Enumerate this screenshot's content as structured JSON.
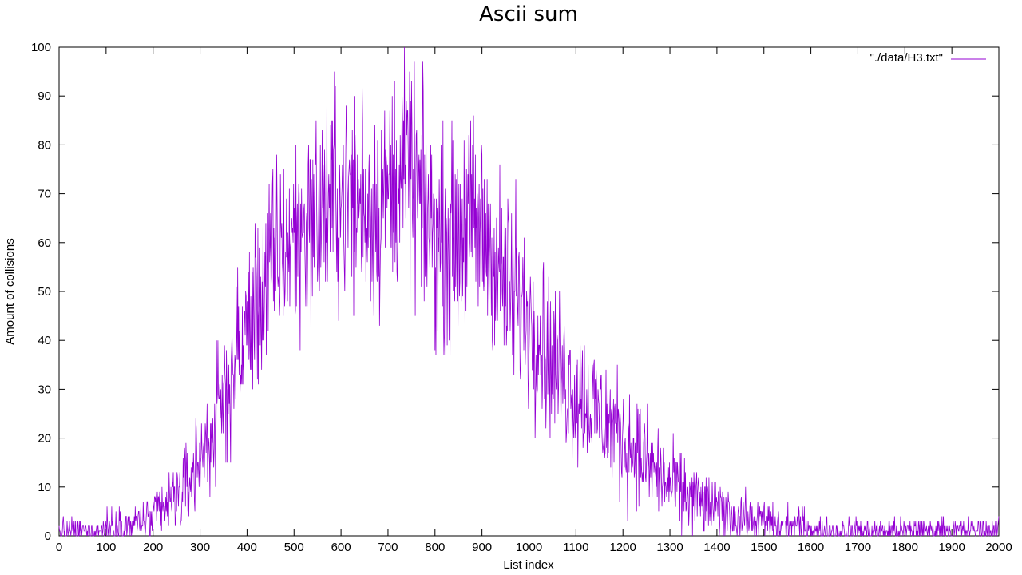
{
  "chart_data": {
    "type": "line",
    "title": "Ascii sum",
    "xlabel": "List index",
    "ylabel": "Amount of collisions",
    "xlim": [
      0,
      2000
    ],
    "ylim": [
      0,
      100
    ],
    "x_ticks": [
      0,
      100,
      200,
      300,
      400,
      500,
      600,
      700,
      800,
      900,
      1000,
      1100,
      1200,
      1300,
      1400,
      1500,
      1600,
      1700,
      1800,
      1900,
      2000
    ],
    "y_ticks": [
      0,
      10,
      20,
      30,
      40,
      50,
      60,
      70,
      80,
      90,
      100
    ],
    "grid": false,
    "legend_position": "top-right",
    "series": [
      {
        "name": "\"./data/H3.txt\"",
        "color": "#9400D3",
        "x_step": 10,
        "sampled_values": [
          1,
          1,
          1,
          1,
          1,
          1,
          1,
          1,
          1,
          1,
          2,
          2,
          2,
          2,
          2,
          2,
          2,
          3,
          3,
          3,
          3,
          5,
          5,
          6,
          7,
          8,
          9,
          10,
          12,
          14,
          16,
          18,
          20,
          22,
          25,
          28,
          31,
          34,
          37,
          39,
          42,
          45,
          47,
          50,
          52,
          54,
          56,
          58,
          59,
          60,
          61,
          62,
          63,
          64,
          65,
          66,
          67,
          68,
          68,
          69,
          69,
          70,
          69,
          69,
          68,
          68,
          67,
          67,
          68,
          69,
          70,
          72,
          74,
          75,
          74,
          72,
          70,
          68,
          66,
          64,
          62,
          61,
          60,
          60,
          61,
          62,
          63,
          64,
          64,
          63,
          62,
          60,
          58,
          56,
          54,
          52,
          50,
          48,
          47,
          46,
          45,
          44,
          42,
          40,
          38,
          36,
          34,
          33,
          32,
          31,
          30,
          29,
          28,
          27,
          26,
          25,
          24,
          23,
          22,
          21,
          20,
          19,
          18,
          17,
          16,
          15,
          14,
          13,
          12,
          11,
          10,
          10,
          9,
          9,
          8,
          8,
          7,
          7,
          6,
          6,
          5,
          5,
          5,
          4,
          4,
          4,
          4,
          3,
          3,
          3,
          3,
          3,
          2,
          2,
          2,
          2,
          2,
          2,
          2,
          2,
          2,
          1,
          1,
          1,
          1,
          1,
          1,
          1,
          1,
          1,
          1,
          1,
          1,
          1,
          1,
          1,
          1,
          1,
          1,
          1,
          1,
          1,
          1,
          1,
          1,
          1,
          1,
          1,
          1,
          1,
          1,
          1,
          1,
          1,
          1,
          1,
          1,
          1,
          1,
          1,
          1
        ],
        "peak_values": [
          {
            "x": 645,
            "y": 92
          },
          {
            "x": 693,
            "y": 87
          },
          {
            "x": 748,
            "y": 89
          },
          {
            "x": 585,
            "y": 80
          },
          {
            "x": 862,
            "y": 81
          },
          {
            "x": 972,
            "y": 73
          },
          {
            "x": 537,
            "y": 73
          }
        ]
      }
    ]
  }
}
